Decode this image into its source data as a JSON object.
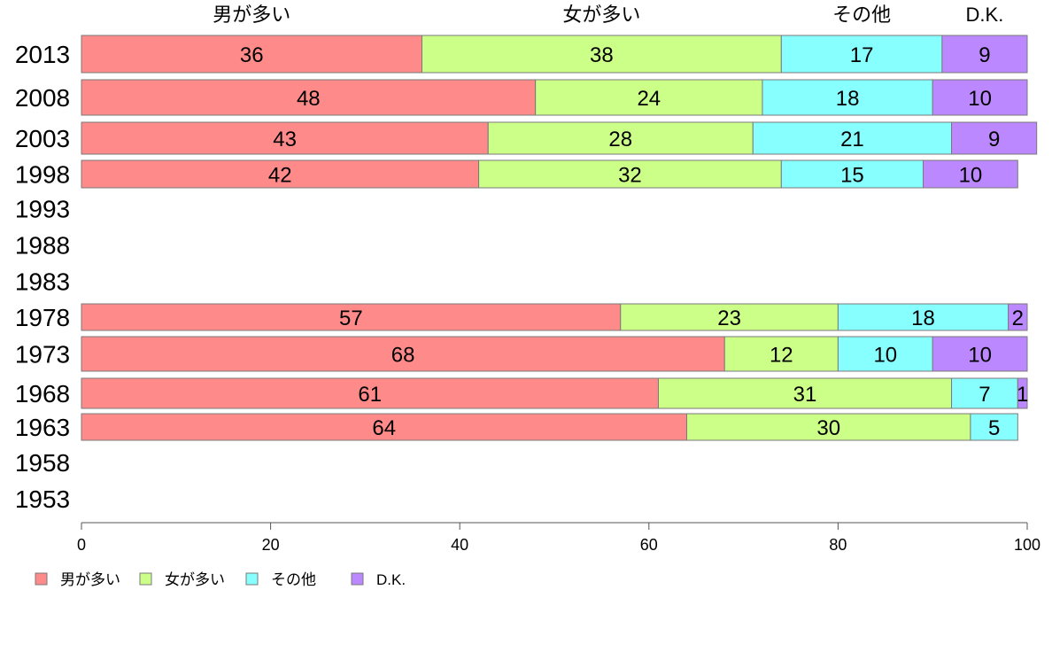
{
  "chart_data": {
    "type": "bar",
    "orientation": "horizontal-stacked",
    "categories": [
      "2013",
      "2008",
      "2003",
      "1998",
      "1993",
      "1988",
      "1983",
      "1978",
      "1973",
      "1968",
      "1963",
      "1958",
      "1953"
    ],
    "series": [
      {
        "name": "男が多い",
        "color": "#ff8a8a",
        "values": [
          36,
          48,
          43,
          42,
          null,
          null,
          null,
          57,
          68,
          61,
          64,
          null,
          null
        ]
      },
      {
        "name": "女が多い",
        "color": "#ccff88",
        "values": [
          38,
          24,
          28,
          32,
          null,
          null,
          null,
          23,
          12,
          31,
          30,
          null,
          null
        ]
      },
      {
        "name": "その他",
        "color": "#88ffff",
        "values": [
          17,
          18,
          21,
          15,
          null,
          null,
          null,
          18,
          10,
          7,
          5,
          null,
          null
        ]
      },
      {
        "name": "D.K.",
        "color": "#bb88ff",
        "values": [
          9,
          10,
          9,
          10,
          null,
          null,
          null,
          2,
          10,
          1,
          0,
          null,
          null
        ]
      }
    ],
    "xlim": [
      0,
      100
    ],
    "xticks": [
      0,
      20,
      40,
      60,
      80,
      100
    ],
    "legend": "bottom-left",
    "column_headers": "top",
    "grid": false
  }
}
